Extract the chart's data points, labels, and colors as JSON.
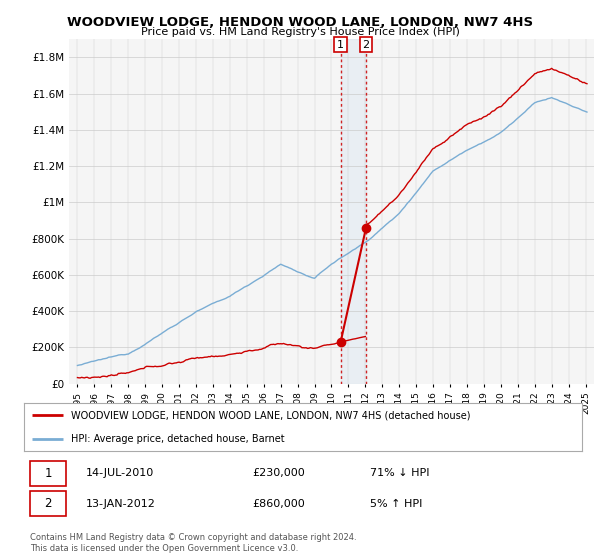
{
  "title": "WOODVIEW LODGE, HENDON WOOD LANE, LONDON, NW7 4HS",
  "subtitle": "Price paid vs. HM Land Registry's House Price Index (HPI)",
  "legend_red": "WOODVIEW LODGE, HENDON WOOD LANE, LONDON, NW7 4HS (detached house)",
  "legend_blue": "HPI: Average price, detached house, Barnet",
  "transaction1_date": "14-JUL-2010",
  "transaction1_price": "£230,000",
  "transaction1_hpi": "71% ↓ HPI",
  "transaction2_date": "13-JAN-2012",
  "transaction2_price": "£860,000",
  "transaction2_hpi": "5% ↑ HPI",
  "footnote": "Contains HM Land Registry data © Crown copyright and database right 2024.\nThis data is licensed under the Open Government Licence v3.0.",
  "ylim": [
    0,
    1900000
  ],
  "yticks": [
    0,
    200000,
    400000,
    600000,
    800000,
    1000000,
    1200000,
    1400000,
    1600000,
    1800000
  ],
  "ytick_labels": [
    "£0",
    "£200K",
    "£400K",
    "£600K",
    "£800K",
    "£1M",
    "£1.2M",
    "£1.4M",
    "£1.6M",
    "£1.8M"
  ],
  "color_red": "#cc0000",
  "color_blue": "#7aadd4",
  "background_color": "#ffffff",
  "transaction1_x": 2010.54,
  "transaction2_x": 2012.04,
  "transaction1_y": 230000,
  "transaction2_y": 860000,
  "xlim_left": 1994.5,
  "xlim_right": 2025.5
}
